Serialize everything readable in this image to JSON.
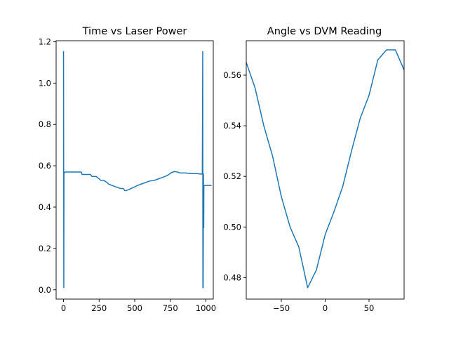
{
  "chart_data": [
    {
      "type": "line",
      "title": "Time vs Laser Power",
      "xlabel": "",
      "ylabel": "",
      "xlim": [
        -52,
        1052
      ],
      "ylim": [
        -0.045,
        1.205
      ],
      "xticks": [
        0,
        250,
        500,
        750,
        1000
      ],
      "yticks": [
        0.0,
        0.2,
        0.4,
        0.6,
        0.8,
        1.0,
        1.2
      ],
      "grid": false,
      "color": "#1f77b4",
      "series": [
        {
          "x": [
            0,
            2,
            3,
            5,
            10,
            30,
            50,
            70,
            90,
            110,
            125,
            130,
            150,
            170,
            190,
            200,
            210,
            230,
            250,
            260,
            280,
            300,
            320,
            340,
            360,
            380,
            400,
            420,
            430,
            440,
            460,
            480,
            500,
            520,
            540,
            560,
            580,
            600,
            620,
            640,
            660,
            680,
            700,
            720,
            740,
            760,
            780,
            800,
            820,
            840,
            860,
            880,
            900,
            920,
            940,
            960,
            975,
            978,
            979,
            980,
            981,
            983,
            985,
            986,
            990,
            1000,
            1010,
            1020,
            1030,
            1040
          ],
          "y": [
            1.155,
            0.01,
            0.565,
            0.565,
            0.57,
            0.57,
            0.57,
            0.57,
            0.57,
            0.57,
            0.57,
            0.558,
            0.558,
            0.558,
            0.558,
            0.548,
            0.548,
            0.548,
            0.537,
            0.53,
            0.53,
            0.522,
            0.51,
            0.505,
            0.5,
            0.495,
            0.49,
            0.49,
            0.48,
            0.48,
            0.485,
            0.492,
            0.498,
            0.505,
            0.51,
            0.515,
            0.52,
            0.525,
            0.528,
            0.53,
            0.535,
            0.54,
            0.545,
            0.55,
            0.558,
            0.568,
            0.572,
            0.57,
            0.565,
            0.565,
            0.565,
            0.563,
            0.562,
            0.562,
            0.562,
            0.56,
            0.56,
            1.152,
            0.01,
            0.55,
            0.01,
            0.56,
            0.3,
            0.5,
            0.505,
            0.505,
            0.505,
            0.505,
            0.505,
            0.505
          ]
        }
      ]
    },
    {
      "type": "line",
      "title": "Angle vs DVM Reading",
      "xlabel": "",
      "ylabel": "",
      "xlim": [
        -90,
        90
      ],
      "ylim": [
        0.4715,
        0.5736
      ],
      "xticks": [
        -50,
        0,
        50
      ],
      "yticks": [
        0.48,
        0.5,
        0.52,
        0.54,
        0.56
      ],
      "grid": false,
      "color": "#1f77b4",
      "series": [
        {
          "x": [
            -90,
            -80,
            -70,
            -60,
            -50,
            -40,
            -30,
            -20,
            -10,
            0,
            10,
            20,
            30,
            40,
            50,
            60,
            70,
            80,
            90
          ],
          "y": [
            0.565,
            0.555,
            0.54,
            0.528,
            0.512,
            0.5,
            0.492,
            0.476,
            0.483,
            0.497,
            0.506,
            0.516,
            0.53,
            0.543,
            0.552,
            0.566,
            0.57,
            0.57,
            0.562
          ]
        }
      ]
    }
  ]
}
